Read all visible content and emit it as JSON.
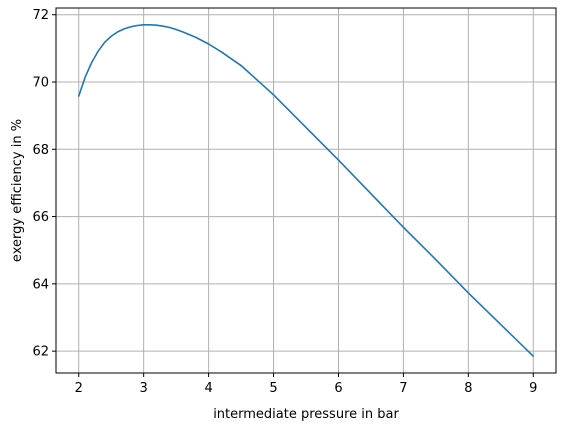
{
  "chart_data": {
    "type": "line",
    "title": "",
    "xlabel": "intermediate pressure in bar",
    "ylabel": "exergy efficiency in %",
    "xlim": [
      1.65,
      9.35
    ],
    "ylim": [
      61.35,
      72.2
    ],
    "xticks": [
      2,
      3,
      4,
      5,
      6,
      7,
      8,
      9
    ],
    "yticks": [
      62,
      64,
      66,
      68,
      70,
      72
    ],
    "xtick_labels": [
      "2",
      "3",
      "4",
      "5",
      "6",
      "7",
      "8",
      "9"
    ],
    "ytick_labels": [
      "62",
      "64",
      "66",
      "68",
      "70",
      "72"
    ],
    "grid": true,
    "series": [
      {
        "color": "#1f77b4",
        "x": [
          2.0,
          2.1,
          2.2,
          2.3,
          2.4,
          2.5,
          2.6,
          2.7,
          2.8,
          2.9,
          3.0,
          3.1,
          3.2,
          3.3,
          3.4,
          3.5,
          3.6,
          3.8,
          4.0,
          4.2,
          4.5,
          5.0,
          5.5,
          6.0,
          6.5,
          7.0,
          7.5,
          8.0,
          8.5,
          9.0
        ],
        "y": [
          69.58,
          70.15,
          70.58,
          70.92,
          71.18,
          71.36,
          71.49,
          71.58,
          71.64,
          71.68,
          71.7,
          71.7,
          71.69,
          71.66,
          71.62,
          71.56,
          71.49,
          71.33,
          71.13,
          70.89,
          70.49,
          69.62,
          68.65,
          67.68,
          66.68,
          65.68,
          64.72,
          63.73,
          62.79,
          61.85
        ]
      }
    ]
  }
}
